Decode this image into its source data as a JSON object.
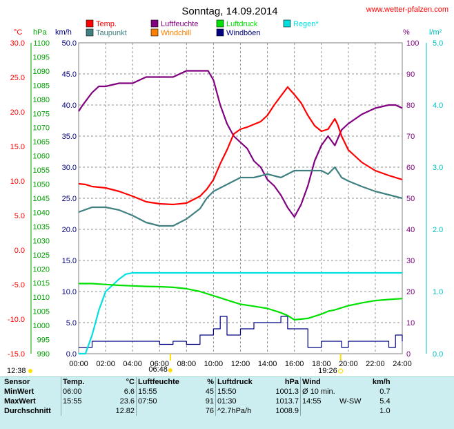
{
  "header": {
    "title": "Sonntag, 14.09.2014",
    "site": "www.wetter-pfalzen.com"
  },
  "axes": {
    "temp_unit": "°C",
    "press_unit": "hPa",
    "wind_unit": "km/h",
    "hum_unit": "%",
    "rain_unit": "l/m²",
    "temp_ticks": [
      "30.0",
      "25.0",
      "20.0",
      "15.0",
      "10.0",
      "5.0",
      "0.0",
      "-5.0",
      "-10.0",
      "-15.0"
    ],
    "press_ticks": [
      "1100",
      "1095",
      "1090",
      "1085",
      "1080",
      "1075",
      "1070",
      "1065",
      "1060",
      "1055",
      "1050",
      "1045",
      "1040",
      "1035",
      "1030",
      "1025",
      "1020",
      "1015",
      "1010",
      "1005",
      "1000",
      "995",
      "990"
    ],
    "wind_ticks": [
      "50.0",
      "45.0",
      "40.0",
      "35.0",
      "30.0",
      "25.0",
      "20.0",
      "15.0",
      "10.0",
      "5.0",
      "0.0"
    ],
    "hum_ticks": [
      "100",
      "90",
      "80",
      "70",
      "60",
      "50",
      "40",
      "30",
      "20",
      "10",
      "0"
    ],
    "rain_ticks": [
      "5.0",
      "4.0",
      "3.0",
      "2.0",
      "1.0",
      "0.0"
    ],
    "time_ticks": [
      "00:00",
      "02:00",
      "04:00",
      "06:00",
      "08:00",
      "10:00",
      "12:00",
      "14:00",
      "16:00",
      "18:00",
      "20:00",
      "22:00",
      "24:00"
    ]
  },
  "sun": {
    "moonrise": "12:38",
    "sunrise": "06:48",
    "sunset": "19:26"
  },
  "colors": {
    "temp": "#ff0000",
    "humidity": "#800080",
    "pressure": "#00e000",
    "dewpoint": "#408080",
    "windchill": "#ff8000",
    "gusts": "#000080",
    "rain": "#00e0e0",
    "temp_axis": "#ff0000",
    "press_axis": "#00a000",
    "wind_axis": "#000080",
    "hum_axis": "#800080",
    "rain_axis": "#00c0c0",
    "sun": "#ffe000"
  },
  "chart_data": {
    "type": "line",
    "title": "Sonntag, 14.09.2014",
    "x_unit": "hours",
    "xlim": [
      0,
      24
    ],
    "legend": [
      {
        "name": "Temp.",
        "color": "#ff0000"
      },
      {
        "name": "Luftfeuchte",
        "color": "#800080"
      },
      {
        "name": "Luftdruck",
        "color": "#00e000"
      },
      {
        "name": "Regen*",
        "color": "#00e0e0"
      },
      {
        "name": "Taupunkt",
        "color": "#408080"
      },
      {
        "name": "Windchill",
        "color": "#ff8000"
      },
      {
        "name": "Windböen",
        "color": "#000080"
      }
    ],
    "series": [
      {
        "name": "Temp.",
        "axis": "temp",
        "ylim": [
          -15,
          30
        ],
        "x": [
          0,
          0.5,
          1,
          2,
          3,
          4,
          5,
          6,
          7,
          8,
          9,
          9.5,
          10,
          10.5,
          11,
          11.5,
          12,
          12.5,
          13,
          13.5,
          14,
          14.5,
          15,
          15.5,
          16,
          16.5,
          17,
          17.5,
          18,
          18.5,
          19,
          19.2,
          19.5,
          20,
          21,
          22,
          23,
          24
        ],
        "y": [
          9.6,
          9.5,
          9.2,
          9.0,
          8.5,
          7.8,
          7.0,
          6.7,
          6.6,
          6.8,
          7.8,
          8.8,
          10.2,
          12.5,
          14.5,
          16.8,
          17.5,
          17.8,
          18.2,
          18.6,
          19.5,
          21.0,
          22.3,
          23.6,
          22.5,
          21.3,
          19.5,
          18.0,
          17.2,
          17.5,
          19.0,
          18.2,
          16.5,
          14.5,
          12.7,
          11.5,
          10.8,
          10.2
        ]
      },
      {
        "name": "Taupunkt",
        "axis": "temp",
        "ylim": [
          -15,
          30
        ],
        "x": [
          0,
          1,
          2,
          3,
          4,
          5,
          6,
          7,
          8,
          9,
          9.5,
          10,
          11,
          12,
          13,
          14,
          15,
          15.5,
          16,
          17,
          18,
          18.5,
          19,
          19.5,
          20,
          21,
          22,
          23,
          24
        ],
        "y": [
          5.5,
          6.2,
          6.2,
          5.8,
          5.0,
          4.0,
          3.5,
          3.5,
          4.5,
          6.0,
          7.5,
          8.5,
          9.5,
          10.5,
          10.5,
          11.0,
          10.5,
          11.0,
          11.5,
          11.5,
          11.5,
          11.0,
          12.0,
          10.5,
          10.0,
          9.2,
          8.5,
          8.0,
          7.5
        ]
      },
      {
        "name": "Luftfeuchte",
        "axis": "humidity",
        "ylim": [
          0,
          100
        ],
        "x": [
          0,
          0.3,
          1,
          1.5,
          2,
          3,
          4,
          5,
          6,
          7,
          8,
          9,
          9.6,
          10,
          10.5,
          11,
          11.5,
          12,
          12.5,
          13,
          13.5,
          14,
          14.5,
          15,
          15.5,
          16,
          16.5,
          17,
          17.5,
          18,
          18.5,
          19,
          19.5,
          20,
          21,
          22,
          23,
          23.5,
          24
        ],
        "y": [
          78,
          80,
          84,
          86,
          86,
          87,
          87,
          89,
          89,
          89,
          91,
          91,
          91,
          88,
          80,
          74,
          70,
          68,
          66,
          62,
          60,
          56,
          54,
          51,
          47,
          44,
          48,
          54,
          62,
          67,
          70,
          67,
          72,
          74,
          77,
          79,
          80,
          80,
          79
        ]
      },
      {
        "name": "Luftdruck",
        "axis": "pressure",
        "ylim": [
          990,
          1100
        ],
        "x": [
          0,
          1,
          2,
          3,
          4,
          5,
          6,
          7,
          8,
          9,
          10,
          11,
          12,
          13,
          14,
          15,
          15.5,
          16,
          17,
          18,
          18.5,
          19,
          20,
          21,
          22,
          23,
          24
        ],
        "y": [
          1014.8,
          1014.8,
          1014.5,
          1014.2,
          1014.0,
          1013.8,
          1013.7,
          1013.5,
          1013.0,
          1012.0,
          1010.5,
          1009.0,
          1007.5,
          1006.8,
          1006.0,
          1004.5,
          1003.5,
          1002.0,
          1002.5,
          1004.0,
          1005.0,
          1005.5,
          1007.0,
          1008.0,
          1008.8,
          1009.2,
          1009.5
        ]
      },
      {
        "name": "Regen*",
        "axis": "rain",
        "ylim": [
          0,
          5
        ],
        "x": [
          0,
          0.5,
          1,
          1.5,
          2,
          2.5,
          3,
          3.5,
          4,
          24
        ],
        "y": [
          0,
          0,
          0.3,
          0.7,
          1.0,
          1.1,
          1.2,
          1.28,
          1.3,
          1.3
        ]
      },
      {
        "name": "Windböen",
        "axis": "wind",
        "ylim": [
          0,
          50
        ],
        "x": [
          0,
          1,
          2,
          3,
          4,
          5,
          6,
          7,
          8,
          9,
          10,
          10.5,
          11,
          12,
          13,
          14,
          15,
          15.5,
          16,
          17,
          18,
          19,
          19.5,
          20,
          21,
          22,
          23,
          23.5,
          24
        ],
        "y": [
          1,
          2,
          2,
          2,
          2,
          2,
          1.5,
          2,
          1.5,
          3,
          4,
          6,
          3,
          4,
          5,
          5,
          6,
          4,
          4,
          1,
          2,
          2,
          1,
          2,
          2,
          2,
          1,
          3,
          2
        ]
      }
    ]
  },
  "stats": {
    "headers": {
      "sensor": "Sensor",
      "temp": "Temp.",
      "temp_unit": "°C",
      "hum": "Luftfeuchte",
      "hum_unit": "%",
      "press": "Luftdruck",
      "press_unit": "hPa",
      "wind": "Wind",
      "wind_unit": "km/h"
    },
    "rows": [
      {
        "label": "MinWert",
        "t_time": "06:00",
        "t_val": "6.6",
        "h_time": "15:55",
        "h_val": "45",
        "p_time": "15:50",
        "p_val": "1001.3",
        "w_time": "Ø 10 min.",
        "w_dir": "",
        "w_val": "0.7"
      },
      {
        "label": "MaxWert",
        "t_time": "15:55",
        "t_val": "23.6",
        "h_time": "07:50",
        "h_val": "91",
        "p_time": "01:30",
        "p_val": "1013.7",
        "w_time": "14:55",
        "w_dir": "W-SW",
        "w_val": "5.4"
      },
      {
        "label": "Durchschnitt",
        "t_time": "",
        "t_val": "12.82",
        "h_time": "",
        "h_val": "76",
        "p_time": "^2.7hPa/h",
        "p_val": "1008.9",
        "w_time": "",
        "w_dir": "",
        "w_val": "1.0"
      }
    ]
  }
}
